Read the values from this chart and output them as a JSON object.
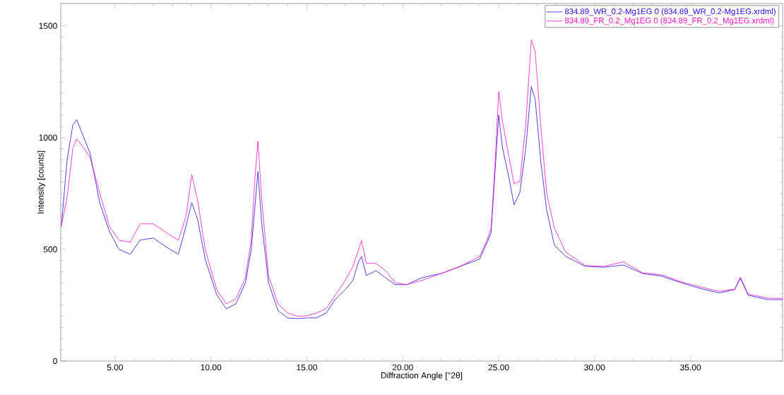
{
  "chart_data": {
    "type": "line",
    "xlabel": "Diffraction Angle [°2θ]",
    "ylabel": "Intensity [counts]",
    "xlim": [
      2.17,
      39.8
    ],
    "ylim": [
      0,
      1600
    ],
    "xticks": [
      {
        "value": 5,
        "label": "5.00"
      },
      {
        "value": 10,
        "label": "10.00"
      },
      {
        "value": 15,
        "label": "15.00"
      },
      {
        "value": 20,
        "label": "20.00"
      },
      {
        "value": 25,
        "label": "25.00"
      },
      {
        "value": 30,
        "label": "30.00"
      },
      {
        "value": 35,
        "label": "35.00"
      }
    ],
    "yticks": [
      0,
      500,
      1000,
      1500
    ],
    "legend": "top right",
    "marker": "none",
    "line_style": "solid",
    "grid": false,
    "x": [
      2.2,
      2.5,
      2.8,
      3.0,
      3.3,
      3.7,
      4.2,
      4.7,
      5.2,
      5.8,
      6.3,
      7.0,
      7.7,
      8.3,
      8.7,
      9.0,
      9.3,
      9.7,
      10.3,
      10.8,
      11.3,
      11.8,
      12.1,
      12.3,
      12.45,
      12.65,
      13.0,
      13.5,
      14.0,
      14.5,
      15.0,
      15.5,
      16.0,
      16.5,
      17.0,
      17.4,
      17.7,
      17.85,
      18.1,
      18.6,
      19.1,
      19.6,
      20.2,
      21.0,
      22.0,
      23.0,
      24.0,
      24.4,
      24.6,
      24.8,
      25.0,
      25.2,
      25.5,
      25.8,
      26.1,
      26.4,
      26.7,
      26.9,
      27.2,
      27.5,
      27.9,
      28.5,
      29.5,
      30.5,
      31.5,
      32.5,
      33.5,
      34.5,
      35.5,
      36.5,
      37.3,
      37.6,
      38.0,
      39.0,
      39.8
    ],
    "series": [
      {
        "name": "834.89_WR_0.2-Mg1EG 0 (834.89_WR_0.2-Mg1EG.xrdml)",
        "color": "#2a0ee0",
        "values": [
          604,
          899,
          1057,
          1080,
          1016,
          930,
          709,
          582,
          500,
          478,
          541,
          551,
          509,
          478,
          604,
          709,
          636,
          456,
          297,
          234,
          256,
          351,
          500,
          699,
          848,
          614,
          351,
          225,
          193,
          190,
          193,
          193,
          215,
          278,
          320,
          361,
          446,
          468,
          383,
          405,
          373,
          342,
          342,
          373,
          392,
          424,
          456,
          532,
          573,
          835,
          1101,
          953,
          835,
          699,
          753,
          943,
          1228,
          1174,
          889,
          677,
          519,
          468,
          424,
          420,
          430,
          392,
          380,
          351,
          325,
          305,
          320,
          370,
          295,
          275,
          275
        ]
      },
      {
        "name": "834.89_FR_0.2_Mg1EG 0 (834.89_FR_0.2_Mg1EG.xrdml)",
        "color": "#f414c4",
        "values": [
          604,
          731,
          952,
          994,
          962,
          911,
          753,
          604,
          541,
          532,
          614,
          614,
          573,
          541,
          646,
          835,
          722,
          500,
          320,
          256,
          278,
          373,
          541,
          826,
          984,
          722,
          383,
          256,
          215,
          200,
          203,
          215,
          234,
          297,
          361,
          424,
          500,
          540,
          437,
          437,
          405,
          351,
          342,
          361,
          392,
          424,
          468,
          541,
          595,
          867,
          1206,
          1070,
          930,
          794,
          804,
          1047,
          1437,
          1386,
          1047,
          753,
          595,
          487,
          428,
          424,
          444,
          395,
          386,
          355,
          332,
          312,
          322,
          376,
          300,
          282,
          280
        ]
      }
    ]
  }
}
